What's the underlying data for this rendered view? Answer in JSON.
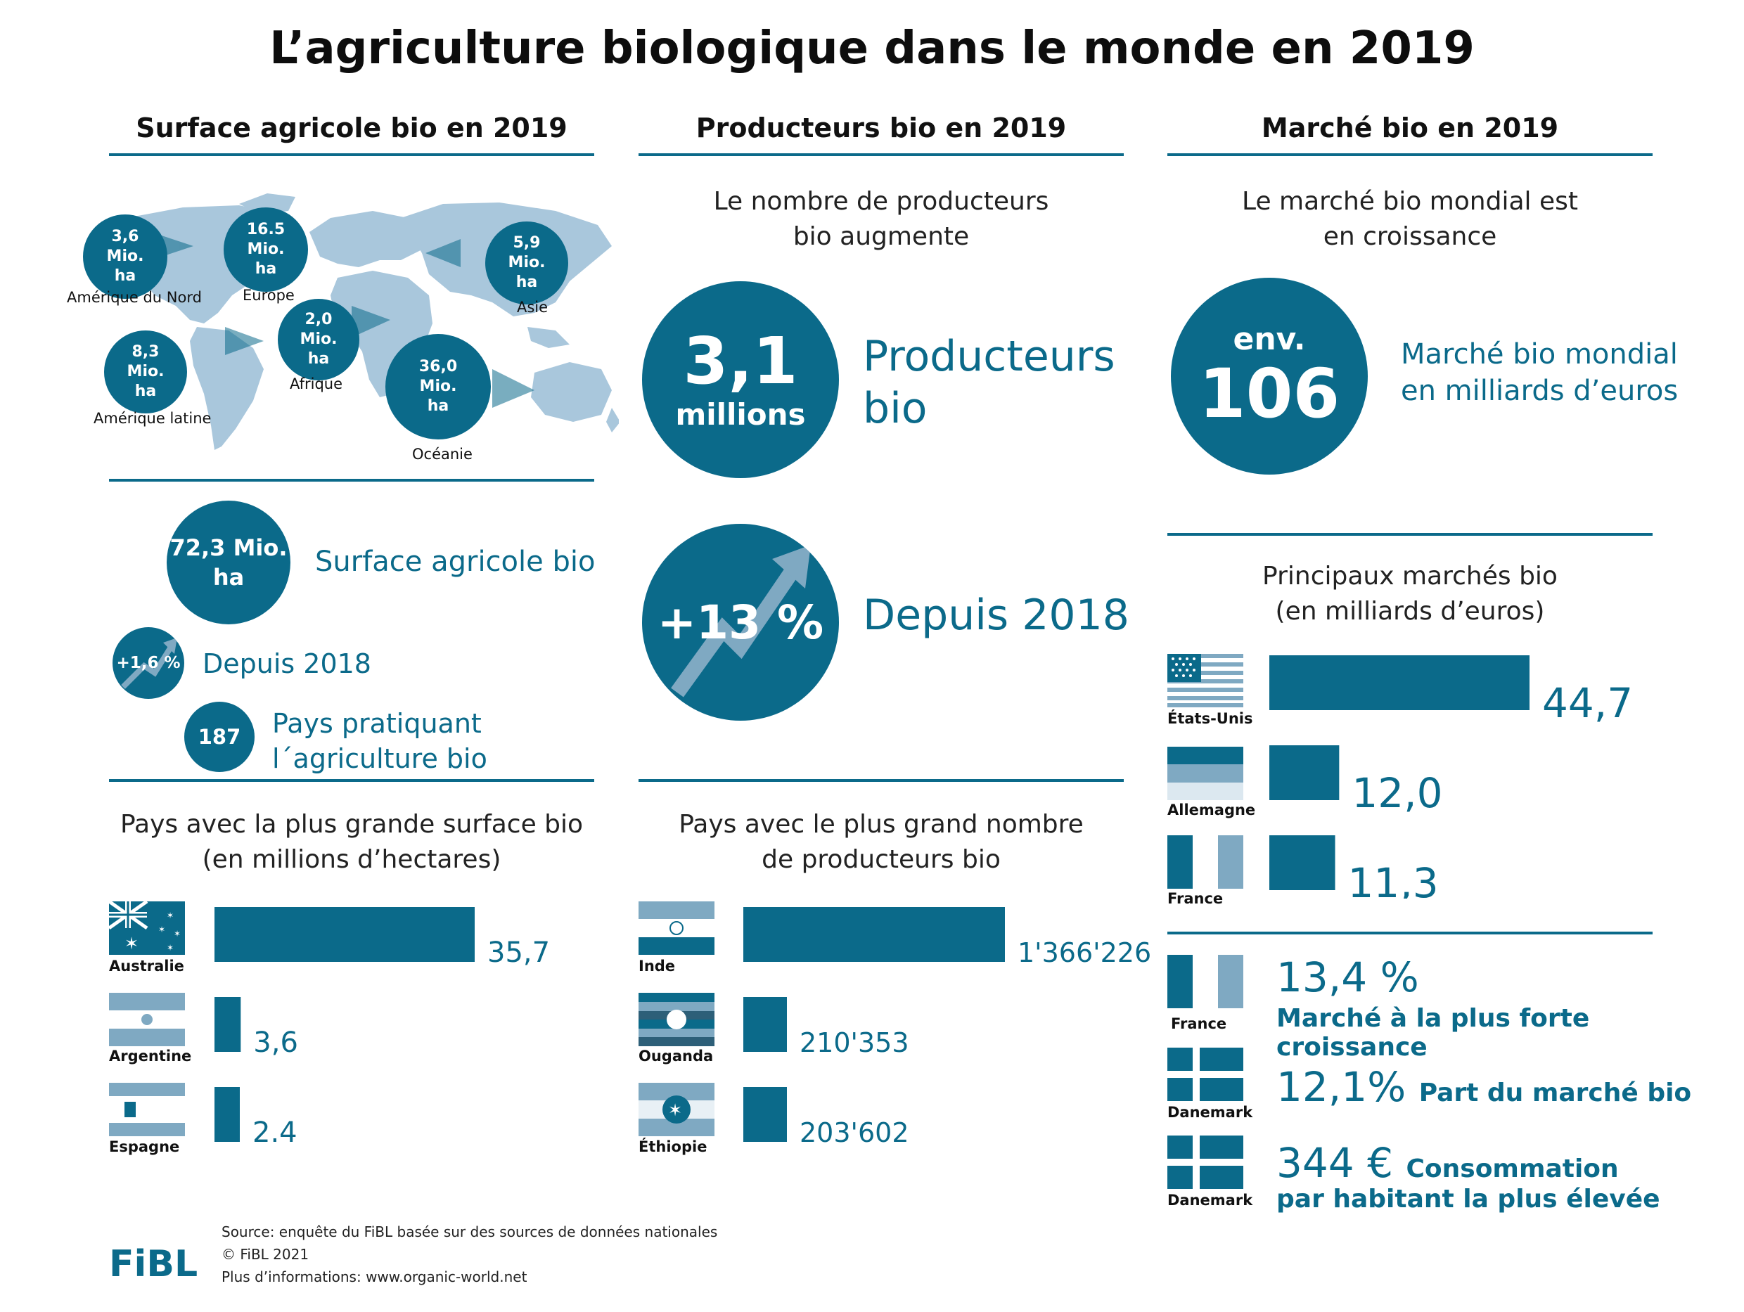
{
  "title": "L’agriculture biologique dans le monde en 2019",
  "sections": {
    "surface": {
      "heading": "Surface agricole bio en 2019",
      "regions": [
        {
          "value": "3,6",
          "unit": "Mio.",
          "unit2": "ha",
          "name": "Amérique du Nord"
        },
        {
          "value": "16.5",
          "unit": "Mio.",
          "unit2": "ha",
          "name": "Europe"
        },
        {
          "value": "5,9",
          "unit": "Mio.",
          "unit2": "ha",
          "name": "Asie"
        },
        {
          "value": "2,0",
          "unit": "Mio.",
          "unit2": "ha",
          "name": "Afrique"
        },
        {
          "value": "8,3",
          "unit": "Mio.",
          "unit2": "ha",
          "name": "Amérique latine"
        },
        {
          "value": "36,0",
          "unit": "Mio.",
          "unit2": "ha",
          "name": "Océanie"
        }
      ],
      "total_value": "72,3 Mio.",
      "total_unit": "ha",
      "total_label": "Surface agricole bio",
      "growth_value": "+1,6 %",
      "growth_label": "Depuis 2018",
      "countries_value": "187",
      "countries_label_1": "Pays pratiquant",
      "countries_label_2": "l´agriculture bio"
    },
    "producers": {
      "heading": "Producteurs bio en 2019",
      "subtitle_1": "Le nombre de producteurs",
      "subtitle_2": "bio augmente",
      "total_value": "3,1",
      "total_unit": "millions",
      "total_label_1": "Producteurs",
      "total_label_2": "bio",
      "growth_value": "+13 %",
      "growth_label": "Depuis 2018"
    },
    "market": {
      "heading": "Marché bio en 2019",
      "subtitle_1": "Le marché bio mondial est",
      "subtitle_2": "en croissance",
      "prefix": "env.",
      "total_value": "106",
      "total_label_1": "Marché bio mondial",
      "total_label_2": "en milliards d’euros",
      "growth_value": "13,4 %",
      "growth_label": "Marché à la plus forte croissance",
      "growth_country": "France",
      "share_value": "12,1%",
      "share_label": "Part du marché bio",
      "share_country": "Danemark",
      "percap_value": "344 €",
      "percap_label_1": "Consommation",
      "percap_label_2": "par habitant la plus élevée",
      "percap_country": "Danemark"
    }
  },
  "chart_data": [
    {
      "type": "bar",
      "title_1": "Pays avec la plus grande surface bio",
      "title_2": "(en millions d’hectares)",
      "categories": [
        "Australie",
        "Argentine",
        "Espagne"
      ],
      "values": [
        35.7,
        3.6,
        2.4
      ],
      "labels": [
        "35,7",
        "3,6",
        "2.4"
      ]
    },
    {
      "type": "bar",
      "title_1": "Pays avec le plus grand nombre",
      "title_2": "de producteurs bio",
      "categories": [
        "Inde",
        "Ouganda",
        "Éthiopie"
      ],
      "values": [
        1366226,
        210353,
        203602
      ],
      "labels": [
        "1'366'226",
        "210'353",
        "203'602"
      ]
    },
    {
      "type": "bar",
      "title_1": "Principaux marchés bio",
      "title_2": "(en milliards d’euros)",
      "categories": [
        "États-Unis",
        "Allemagne",
        "France"
      ],
      "values": [
        44.7,
        12.0,
        11.3
      ],
      "labels": [
        "44,7",
        "12,0",
        "11,3"
      ]
    }
  ],
  "footer": {
    "logo": "FiBL",
    "source": "Source: enquête du FiBL basée sur des sources de données nationales",
    "copyright": "© FiBL 2021",
    "info": "Plus d’informations: www.organic-world.net"
  },
  "colors": {
    "accent": "#0b6a8a",
    "light": "#7fa9c2",
    "map": "#a9c7dc"
  }
}
